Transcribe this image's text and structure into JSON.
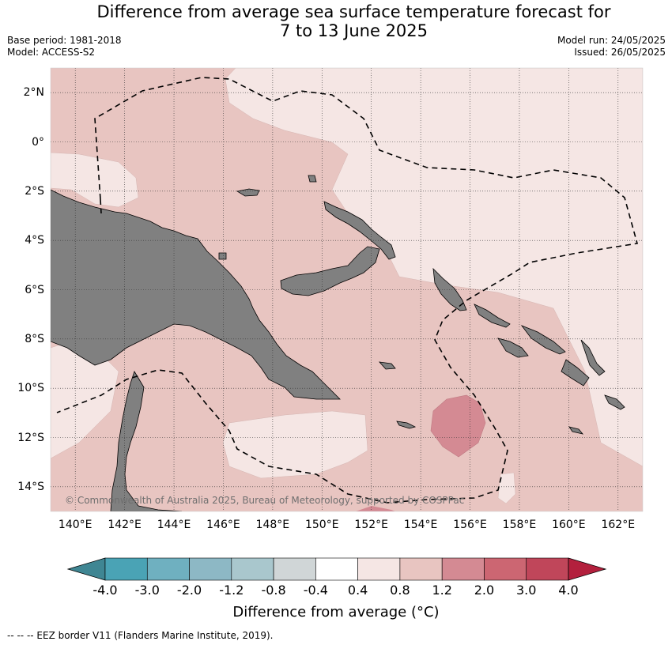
{
  "title_line1": "Difference from average sea surface temperature forecast for",
  "title_line2": "7 to 13 June 2025",
  "base_period": "Base period: 1981-2018",
  "model": "Model: ACCESS-S2",
  "model_run": "Model run: 24/05/2025",
  "issued": "Issued: 26/05/2025",
  "copyright": "© Commonwealth of Australia 2025, Bureau of Meteorology, supported by COSPPac",
  "map": {
    "lat_labels": [
      "2°N",
      "0°",
      "2°S",
      "4°S",
      "6°S",
      "8°S",
      "10°S",
      "12°S",
      "14°S"
    ],
    "lat_values": [
      2,
      0,
      -2,
      -4,
      -6,
      -8,
      -10,
      -12,
      -14
    ],
    "lon_labels": [
      "140°E",
      "142°E",
      "144°E",
      "146°E",
      "148°E",
      "150°E",
      "152°E",
      "154°E",
      "156°E",
      "158°E",
      "160°E",
      "162°E"
    ],
    "lon_values": [
      140,
      142,
      144,
      146,
      148,
      150,
      152,
      154,
      156,
      158,
      160,
      162
    ],
    "lon_range": [
      139,
      163
    ],
    "lat_range": [
      -15,
      3
    ],
    "grid": true,
    "land_color": "#808080",
    "anomaly_colors": {
      "0.4-0.8": "#f5e6e4",
      "0.8-1.2": "#e8c5c1",
      "1.2-2.0": "#d48a93"
    }
  },
  "colorbar": {
    "ticks": [
      "-4.0",
      "-3.0",
      "-2.0",
      "-1.2",
      "-0.8",
      "-0.4",
      "0.4",
      "0.8",
      "1.2",
      "2.0",
      "3.0",
      "4.0"
    ],
    "colors": [
      "#4aa3b5",
      "#6fb0c0",
      "#8db8c5",
      "#a9c7cd",
      "#d0d6d7",
      "#ffffff",
      "#f5e6e4",
      "#e8c5c1",
      "#d48a93",
      "#cc6672",
      "#c0465a"
    ],
    "extend_low_color": "#3f8693",
    "extend_high_color": "#b3203d",
    "label": "Difference from average (°C)"
  },
  "footer": "-- -- -- EEZ border V11 (Flanders Marine Institute, 2019)."
}
